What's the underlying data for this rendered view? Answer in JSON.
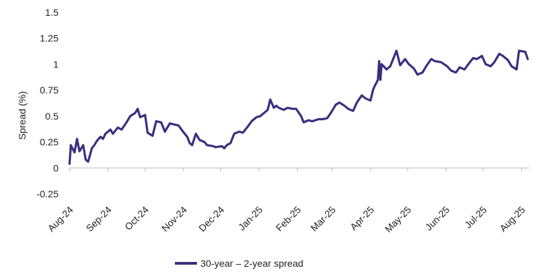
{
  "chart_data": {
    "type": "line",
    "title": "",
    "xlabel": "",
    "ylabel": "Spread (%)",
    "ylim": [
      -0.25,
      1.5
    ],
    "yticks": [
      -0.25,
      0,
      0.25,
      0.5,
      0.75,
      1,
      1.25,
      1.5
    ],
    "ytick_labels": [
      "-0.25",
      "0",
      "0.25",
      "0.5",
      "0.75",
      "1",
      "1.25",
      "1.5"
    ],
    "xticks": [
      "2024-08-01",
      "2024-09-01",
      "2024-10-01",
      "2024-11-01",
      "2024-12-01",
      "2025-01-01",
      "2025-02-01",
      "2025-03-01",
      "2025-04-01",
      "2025-05-01",
      "2025-06-01",
      "2025-07-01",
      "2025-08-01"
    ],
    "xtick_labels": [
      "Aug-24",
      "Sep-24",
      "Oct-24",
      "Nov-24",
      "Dec-24",
      "Jan-25",
      "Feb-25",
      "Mar-25",
      "Apr-25",
      "May-25",
      "Jun-25",
      "Jul-25",
      "Aug-25"
    ],
    "xlim": [
      "2024-08-01",
      "2025-08-07"
    ],
    "grid": false,
    "legend_position": "bottom",
    "colors": {
      "line": "#3a2f7f",
      "axis": "#bbbbbb",
      "text": "#222222"
    },
    "series": [
      {
        "name": "30-year – 2-year spread",
        "points": [
          [
            "2024-08-01",
            0.04
          ],
          [
            "2024-08-02",
            0.22
          ],
          [
            "2024-08-05",
            0.15
          ],
          [
            "2024-08-07",
            0.28
          ],
          [
            "2024-08-09",
            0.16
          ],
          [
            "2024-08-12",
            0.22
          ],
          [
            "2024-08-14",
            0.08
          ],
          [
            "2024-08-16",
            0.06
          ],
          [
            "2024-08-19",
            0.19
          ],
          [
            "2024-08-21",
            0.22
          ],
          [
            "2024-08-23",
            0.26
          ],
          [
            "2024-08-26",
            0.3
          ],
          [
            "2024-08-28",
            0.28
          ],
          [
            "2024-08-30",
            0.33
          ],
          [
            "2024-09-03",
            0.37
          ],
          [
            "2024-09-05",
            0.33
          ],
          [
            "2024-09-09",
            0.39
          ],
          [
            "2024-09-12",
            0.37
          ],
          [
            "2024-09-16",
            0.44
          ],
          [
            "2024-09-19",
            0.5
          ],
          [
            "2024-09-23",
            0.53
          ],
          [
            "2024-09-25",
            0.57
          ],
          [
            "2024-09-27",
            0.49
          ],
          [
            "2024-10-01",
            0.51
          ],
          [
            "2024-10-03",
            0.34
          ],
          [
            "2024-10-07",
            0.31
          ],
          [
            "2024-10-10",
            0.45
          ],
          [
            "2024-10-14",
            0.44
          ],
          [
            "2024-10-17",
            0.35
          ],
          [
            "2024-10-21",
            0.43
          ],
          [
            "2024-10-24",
            0.42
          ],
          [
            "2024-10-28",
            0.41
          ],
          [
            "2024-10-31",
            0.36
          ],
          [
            "2024-11-04",
            0.3
          ],
          [
            "2024-11-06",
            0.24
          ],
          [
            "2024-11-08",
            0.22
          ],
          [
            "2024-11-11",
            0.33
          ],
          [
            "2024-11-14",
            0.27
          ],
          [
            "2024-11-18",
            0.25
          ],
          [
            "2024-11-20",
            0.22
          ],
          [
            "2024-11-25",
            0.21
          ],
          [
            "2024-11-27",
            0.2
          ],
          [
            "2024-12-02",
            0.21
          ],
          [
            "2024-12-04",
            0.19
          ],
          [
            "2024-12-06",
            0.22
          ],
          [
            "2024-12-09",
            0.24
          ],
          [
            "2024-12-12",
            0.33
          ],
          [
            "2024-12-16",
            0.35
          ],
          [
            "2024-12-19",
            0.34
          ],
          [
            "2024-12-23",
            0.4
          ],
          [
            "2024-12-26",
            0.45
          ],
          [
            "2024-12-30",
            0.49
          ],
          [
            "2025-01-02",
            0.5
          ],
          [
            "2025-01-06",
            0.54
          ],
          [
            "2025-01-08",
            0.56
          ],
          [
            "2025-01-10",
            0.66
          ],
          [
            "2025-01-13",
            0.58
          ],
          [
            "2025-01-15",
            0.6
          ],
          [
            "2025-01-17",
            0.58
          ],
          [
            "2025-01-21",
            0.56
          ],
          [
            "2025-01-24",
            0.58
          ],
          [
            "2025-01-28",
            0.57
          ],
          [
            "2025-01-31",
            0.57
          ],
          [
            "2025-02-04",
            0.5
          ],
          [
            "2025-02-06",
            0.44
          ],
          [
            "2025-02-10",
            0.46
          ],
          [
            "2025-02-13",
            0.45
          ],
          [
            "2025-02-18",
            0.47
          ],
          [
            "2025-02-21",
            0.47
          ],
          [
            "2025-02-25",
            0.48
          ],
          [
            "2025-02-28",
            0.53
          ],
          [
            "2025-03-04",
            0.61
          ],
          [
            "2025-03-07",
            0.63
          ],
          [
            "2025-03-11",
            0.6
          ],
          [
            "2025-03-14",
            0.57
          ],
          [
            "2025-03-18",
            0.55
          ],
          [
            "2025-03-21",
            0.63
          ],
          [
            "2025-03-25",
            0.7
          ],
          [
            "2025-03-28",
            0.67
          ],
          [
            "2025-04-01",
            0.65
          ],
          [
            "2025-04-03",
            0.75
          ],
          [
            "2025-04-04",
            0.78
          ],
          [
            "2025-04-07",
            0.85
          ],
          [
            "2025-04-08",
            1.03
          ],
          [
            "2025-04-09",
            0.85
          ],
          [
            "2025-04-10",
            1.0
          ],
          [
            "2025-04-14",
            0.95
          ],
          [
            "2025-04-17",
            0.98
          ],
          [
            "2025-04-22",
            1.13
          ],
          [
            "2025-04-25",
            0.99
          ],
          [
            "2025-04-29",
            1.05
          ],
          [
            "2025-05-02",
            1.0
          ],
          [
            "2025-05-06",
            0.96
          ],
          [
            "2025-05-09",
            0.9
          ],
          [
            "2025-05-13",
            0.92
          ],
          [
            "2025-05-16",
            0.98
          ],
          [
            "2025-05-20",
            1.05
          ],
          [
            "2025-05-23",
            1.03
          ],
          [
            "2025-05-28",
            1.02
          ],
          [
            "2025-06-02",
            0.98
          ],
          [
            "2025-06-05",
            0.94
          ],
          [
            "2025-06-09",
            0.92
          ],
          [
            "2025-06-12",
            0.97
          ],
          [
            "2025-06-16",
            0.95
          ],
          [
            "2025-06-19",
            1.0
          ],
          [
            "2025-06-23",
            1.06
          ],
          [
            "2025-06-26",
            1.05
          ],
          [
            "2025-06-30",
            1.08
          ],
          [
            "2025-07-03",
            1.0
          ],
          [
            "2025-07-07",
            0.98
          ],
          [
            "2025-07-10",
            1.02
          ],
          [
            "2025-07-14",
            1.1
          ],
          [
            "2025-07-17",
            1.08
          ],
          [
            "2025-07-21",
            1.04
          ],
          [
            "2025-07-24",
            0.98
          ],
          [
            "2025-07-28",
            0.95
          ],
          [
            "2025-07-30",
            1.13
          ],
          [
            "2025-08-04",
            1.12
          ],
          [
            "2025-08-06",
            1.05
          ]
        ]
      }
    ]
  }
}
